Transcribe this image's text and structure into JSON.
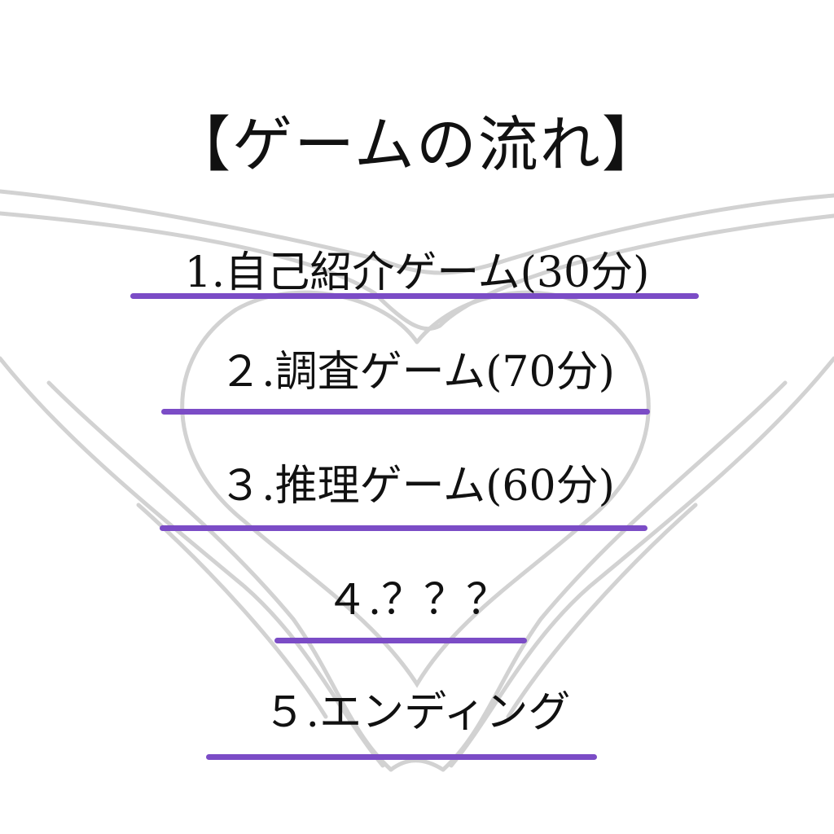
{
  "title": "【ゲームの流れ】",
  "items": [
    {
      "label": "1.自己紹介ゲーム(30分)"
    },
    {
      "label": "２.調査ゲーム(70分)"
    },
    {
      "label": "３.推理ゲーム(60分)"
    },
    {
      "label": "４.？？？"
    },
    {
      "label": "５.エンディング"
    }
  ],
  "colors": {
    "underline": "#7b4cc6",
    "background_art": "#cfcfcf",
    "text": "#111111"
  },
  "background_art": "heart-hands-outline"
}
